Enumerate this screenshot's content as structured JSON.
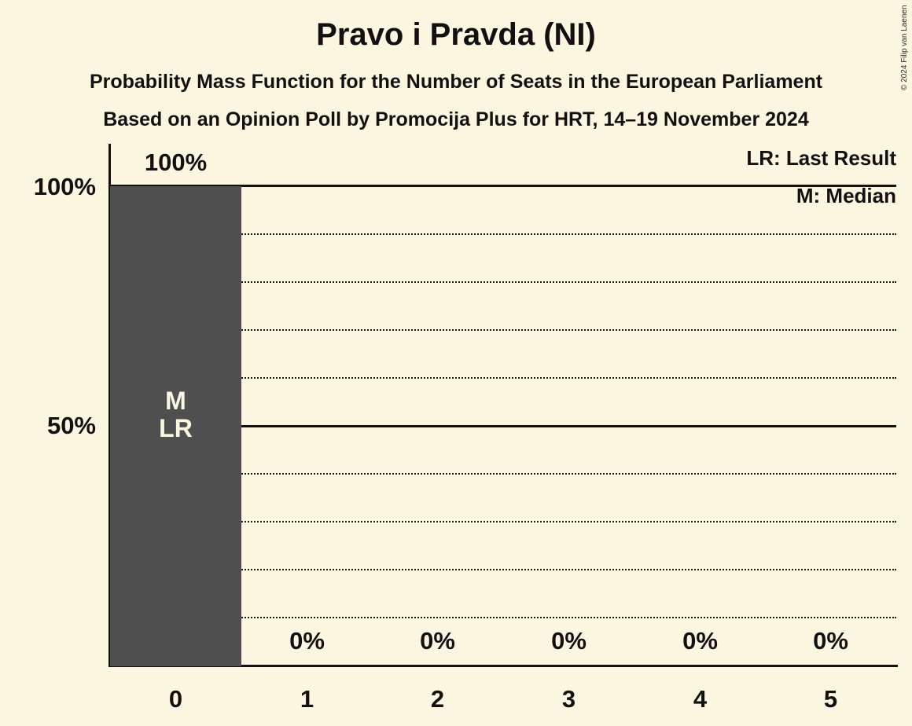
{
  "title": "Pravo i Pravda (NI)",
  "subtitle": "Probability Mass Function for the Number of Seats in the European Parliament",
  "source_line": "Based on an Opinion Poll by Promocija Plus for HRT, 14–19 November 2024",
  "copyright": "© 2024 Filip van Laenen",
  "legend": {
    "last_result": "LR: Last Result",
    "median": "M: Median"
  },
  "colors": {
    "background": "#FBF6DF",
    "bar": "#4F4F4F",
    "line": "#111111",
    "text": "#111111",
    "bar_label_text": "#FBF6DF"
  },
  "y_axis": {
    "labels": [
      "100%",
      "50%"
    ]
  },
  "chart_data": {
    "type": "bar",
    "title": "Pravo i Pravda (NI)",
    "categories": [
      "0",
      "1",
      "2",
      "3",
      "4",
      "5"
    ],
    "values": [
      100,
      0,
      0,
      0,
      0,
      0
    ],
    "value_labels": [
      "100%",
      "0%",
      "0%",
      "0%",
      "0%",
      "0%"
    ],
    "xlabel": "",
    "ylabel": "",
    "ylim": [
      0,
      100
    ],
    "y_solid_gridlines": [
      100,
      50
    ],
    "y_dotted_gridlines": [
      90,
      80,
      70,
      60,
      40,
      30,
      20,
      10
    ],
    "legend_position": "top-right",
    "bar_inner_labels": [
      "M",
      "LR"
    ],
    "median_seats": 0,
    "last_result_seats": 0
  }
}
